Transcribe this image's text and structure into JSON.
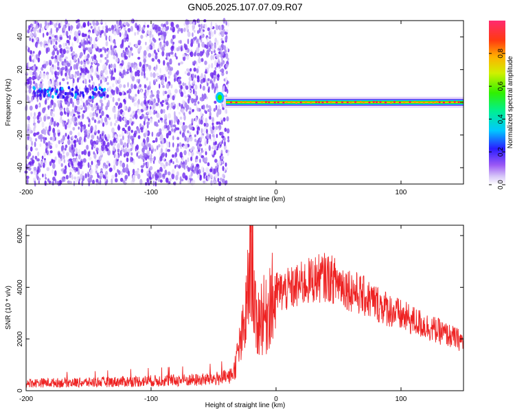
{
  "page_title": "GN05.2025.107.07.09.R07",
  "colors": {
    "snr_line": "#ee2222",
    "axis": "#000000",
    "spectrogram_noise": "#7a2cf0",
    "spectrogram_ridge": "#ff1a4a"
  },
  "chart_data": [
    {
      "type": "heatmap",
      "title": "GN05.2025.107.07.09.R07",
      "xlabel": "Height of straight line (km)",
      "ylabel": "Frequency (Hz)",
      "xlim": [
        -200,
        150
      ],
      "ylim": [
        -50,
        50
      ],
      "xticks": [
        "-200",
        "-100",
        "0",
        "100"
      ],
      "yticks": [
        "-40",
        "-20",
        "0",
        "20",
        "40"
      ],
      "colorbar": {
        "label": "Normalized spectral amplitude",
        "range": [
          0,
          1
        ],
        "ticks": [
          "0.0",
          "0.2",
          "0.4",
          "0.6",
          "0.8"
        ],
        "colormap": "rainbow"
      },
      "features": {
        "noise_region_x": [
          -200,
          -38
        ],
        "ridge_x": [
          -48,
          150
        ],
        "ridge_frequency_hz": 0
      }
    },
    {
      "type": "line",
      "xlabel": "Height of straight line (km)",
      "ylabel": "SNR (10 * v/v)",
      "xlim": [
        -200,
        150
      ],
      "ylim": [
        0,
        6400
      ],
      "xticks": [
        "-200",
        "-100",
        "0",
        "100"
      ],
      "yticks": [
        "0",
        "2000",
        "4000",
        "6000"
      ],
      "series_profile": {
        "x": [
          -200,
          -150,
          -100,
          -60,
          -45,
          -38,
          -34,
          -30,
          -25,
          -22,
          -20,
          -16,
          -12,
          -8,
          -5,
          -2,
          0,
          10,
          20,
          30,
          40,
          50,
          60,
          80,
          100,
          120,
          140,
          150
        ],
        "y": [
          300,
          320,
          380,
          420,
          480,
          520,
          700,
          1500,
          2500,
          4000,
          6300,
          2400,
          3000,
          2800,
          3600,
          3400,
          3800,
          3900,
          4100,
          4300,
          4400,
          4200,
          3900,
          3400,
          2900,
          2500,
          2100,
          1900
        ]
      }
    }
  ]
}
